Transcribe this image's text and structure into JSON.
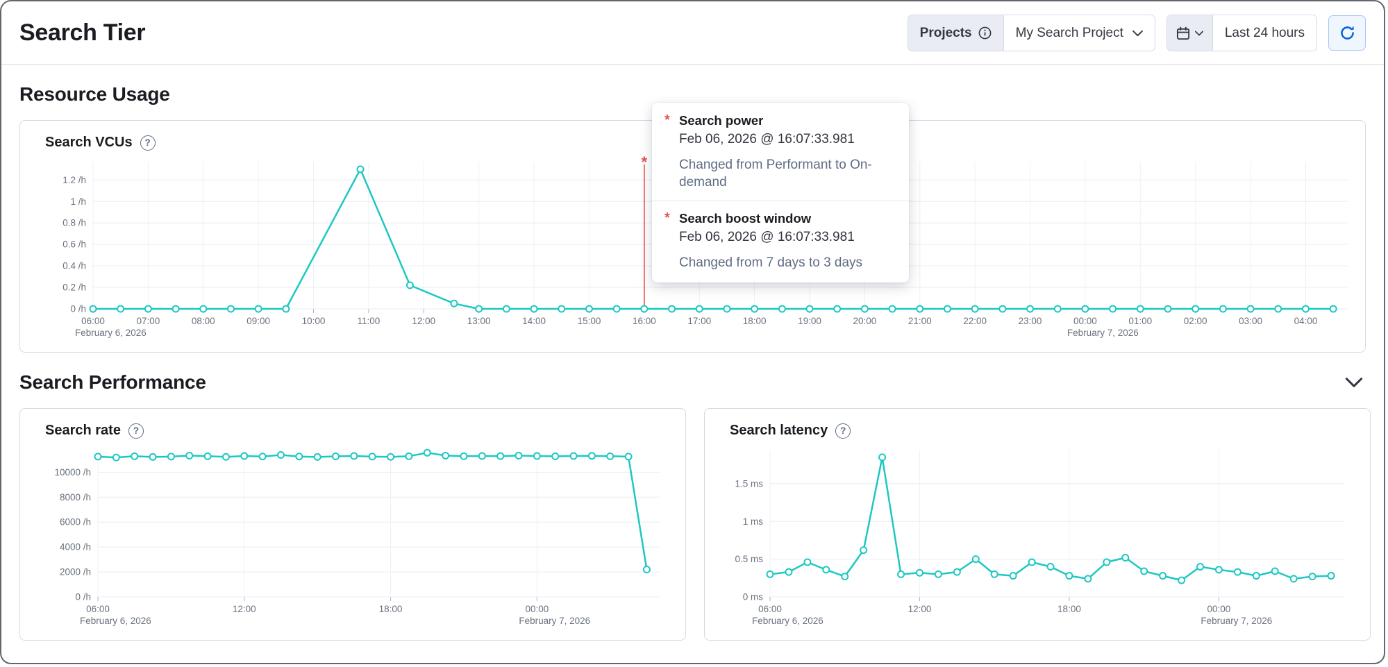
{
  "page": {
    "title": "Search Tier"
  },
  "header": {
    "projects_button": "Projects",
    "project_selector": "My Search Project",
    "time_range": "Last 24 hours"
  },
  "sections": {
    "resource_usage": "Resource Usage",
    "search_performance": "Search Performance"
  },
  "cards": {
    "vcus": "Search VCUs",
    "rate": "Search rate",
    "latency": "Search latency"
  },
  "icons": {
    "help_glyph": "?"
  },
  "tooltip": {
    "items": [
      {
        "title": "Search power",
        "timestamp": "Feb 06, 2026 @ 16:07:33.981",
        "description": "Changed from Performant to On-demand"
      },
      {
        "title": "Search boost window",
        "timestamp": "Feb 06, 2026 @ 16:07:33.981",
        "description": "Changed from 7 days to 3 days"
      }
    ]
  },
  "colors": {
    "series": "#1dc8c2",
    "annotation": "#e5534b",
    "grid_h": "#e8ecf2",
    "grid_v": "#eef1f6",
    "tick_mark": "#aab4c2"
  },
  "chart_data": [
    {
      "id": "vcus",
      "type": "line",
      "title": "Search VCUs",
      "ylabel_unit": "/h",
      "xlim": [
        6,
        28.75
      ],
      "ylim": [
        0,
        1.37
      ],
      "yticks": [
        [
          0,
          "0 /h"
        ],
        [
          0.2,
          "0.2 /h"
        ],
        [
          0.4,
          "0.4 /h"
        ],
        [
          0.6,
          "0.6 /h"
        ],
        [
          0.8,
          "0.8 /h"
        ],
        [
          1,
          "1 /h"
        ],
        [
          1.2,
          "1.2 /h"
        ]
      ],
      "xticks": [
        [
          6,
          "06:00",
          "February 6, 2026"
        ],
        [
          7,
          "07:00"
        ],
        [
          8,
          "08:00"
        ],
        [
          9,
          "09:00"
        ],
        [
          10,
          "10:00"
        ],
        [
          11,
          "11:00"
        ],
        [
          12,
          "12:00"
        ],
        [
          13,
          "13:00"
        ],
        [
          14,
          "14:00"
        ],
        [
          15,
          "15:00"
        ],
        [
          16,
          "16:00"
        ],
        [
          17,
          "17:00"
        ],
        [
          18,
          "18:00"
        ],
        [
          19,
          "19:00"
        ],
        [
          20,
          "20:00"
        ],
        [
          21,
          "21:00"
        ],
        [
          22,
          "22:00"
        ],
        [
          23,
          "23:00"
        ],
        [
          24,
          "00:00",
          "February 7, 2026"
        ],
        [
          25,
          "01:00"
        ],
        [
          26,
          "02:00"
        ],
        [
          27,
          "03:00"
        ],
        [
          28,
          "04:00"
        ]
      ],
      "annotation": {
        "x": 16,
        "marker": "*",
        "timestamp": "Feb 06, 2026 @ 16:07:33.981"
      },
      "points": [
        [
          6,
          0
        ],
        [
          6.5,
          0
        ],
        [
          7,
          0
        ],
        [
          7.5,
          0
        ],
        [
          8,
          0
        ],
        [
          8.5,
          0
        ],
        [
          9,
          0
        ],
        [
          9.5,
          0
        ],
        [
          10.85,
          1.3
        ],
        [
          11.75,
          0.22
        ],
        [
          12.55,
          0.05
        ],
        [
          13,
          0
        ],
        [
          13.5,
          0
        ],
        [
          14,
          0
        ],
        [
          14.5,
          0
        ],
        [
          15,
          0
        ],
        [
          15.5,
          0
        ],
        [
          16,
          0
        ],
        [
          16.5,
          0
        ],
        [
          17,
          0
        ],
        [
          17.5,
          0
        ],
        [
          18,
          0
        ],
        [
          18.5,
          0
        ],
        [
          19,
          0
        ],
        [
          19.5,
          0
        ],
        [
          20,
          0
        ],
        [
          20.5,
          0
        ],
        [
          21,
          0
        ],
        [
          21.5,
          0
        ],
        [
          22,
          0
        ],
        [
          22.5,
          0
        ],
        [
          23,
          0
        ],
        [
          23.5,
          0
        ],
        [
          24,
          0
        ],
        [
          24.5,
          0
        ],
        [
          25,
          0
        ],
        [
          25.5,
          0
        ],
        [
          26,
          0
        ],
        [
          26.5,
          0
        ],
        [
          27,
          0
        ],
        [
          27.5,
          0
        ],
        [
          28,
          0
        ],
        [
          28.5,
          0
        ]
      ]
    },
    {
      "id": "rate",
      "type": "line",
      "title": "Search rate",
      "ylabel_unit": "/h",
      "xlim": [
        6,
        29
      ],
      "ylim": [
        0,
        11800
      ],
      "yticks": [
        [
          0,
          "0 /h"
        ],
        [
          2000,
          "2000 /h"
        ],
        [
          4000,
          "4000 /h"
        ],
        [
          6000,
          "6000 /h"
        ],
        [
          8000,
          "8000 /h"
        ],
        [
          10000,
          "10000 /h"
        ]
      ],
      "xticks": [
        [
          6,
          "06:00",
          "February 6, 2026"
        ],
        [
          12,
          "12:00"
        ],
        [
          18,
          "18:00"
        ],
        [
          24,
          "00:00",
          "February 7, 2026"
        ]
      ],
      "points": [
        [
          6,
          11250
        ],
        [
          6.75,
          11180
        ],
        [
          7.5,
          11280
        ],
        [
          8.25,
          11220
        ],
        [
          9,
          11250
        ],
        [
          9.75,
          11330
        ],
        [
          10.5,
          11280
        ],
        [
          11.25,
          11230
        ],
        [
          12,
          11300
        ],
        [
          12.75,
          11260
        ],
        [
          13.5,
          11380
        ],
        [
          14.25,
          11260
        ],
        [
          15,
          11220
        ],
        [
          15.75,
          11270
        ],
        [
          16.5,
          11300
        ],
        [
          17.25,
          11250
        ],
        [
          18,
          11230
        ],
        [
          18.75,
          11280
        ],
        [
          19.5,
          11560
        ],
        [
          20.25,
          11330
        ],
        [
          21,
          11280
        ],
        [
          21.75,
          11300
        ],
        [
          22.5,
          11290
        ],
        [
          23.25,
          11330
        ],
        [
          24,
          11300
        ],
        [
          24.75,
          11270
        ],
        [
          25.5,
          11300
        ],
        [
          26.25,
          11310
        ],
        [
          27,
          11280
        ],
        [
          27.75,
          11250
        ],
        [
          28.5,
          2200
        ]
      ]
    },
    {
      "id": "latency",
      "type": "line",
      "title": "Search latency",
      "ylabel_unit": "ms",
      "xlim": [
        6,
        29
      ],
      "ylim": [
        0,
        1.95
      ],
      "yticks": [
        [
          0,
          "0 ms"
        ],
        [
          0.5,
          "0.5 ms"
        ],
        [
          1,
          "1 ms"
        ],
        [
          1.5,
          "1.5 ms"
        ]
      ],
      "xticks": [
        [
          6,
          "06:00",
          "February 6, 2026"
        ],
        [
          12,
          "12:00"
        ],
        [
          18,
          "18:00"
        ],
        [
          24,
          "00:00",
          "February 7, 2026"
        ]
      ],
      "points": [
        [
          6,
          0.3
        ],
        [
          6.75,
          0.33
        ],
        [
          7.5,
          0.46
        ],
        [
          8.25,
          0.36
        ],
        [
          9,
          0.27
        ],
        [
          9.75,
          0.62
        ],
        [
          10.5,
          1.85
        ],
        [
          11.25,
          0.3
        ],
        [
          12,
          0.32
        ],
        [
          12.75,
          0.3
        ],
        [
          13.5,
          0.33
        ],
        [
          14.25,
          0.5
        ],
        [
          15,
          0.3
        ],
        [
          15.75,
          0.28
        ],
        [
          16.5,
          0.46
        ],
        [
          17.25,
          0.4
        ],
        [
          18,
          0.28
        ],
        [
          18.75,
          0.24
        ],
        [
          19.5,
          0.46
        ],
        [
          20.25,
          0.52
        ],
        [
          21,
          0.34
        ],
        [
          21.75,
          0.28
        ],
        [
          22.5,
          0.22
        ],
        [
          23.25,
          0.4
        ],
        [
          24,
          0.36
        ],
        [
          24.75,
          0.33
        ],
        [
          25.5,
          0.28
        ],
        [
          26.25,
          0.34
        ],
        [
          27,
          0.24
        ],
        [
          27.75,
          0.27
        ],
        [
          28.5,
          0.28
        ]
      ]
    }
  ]
}
